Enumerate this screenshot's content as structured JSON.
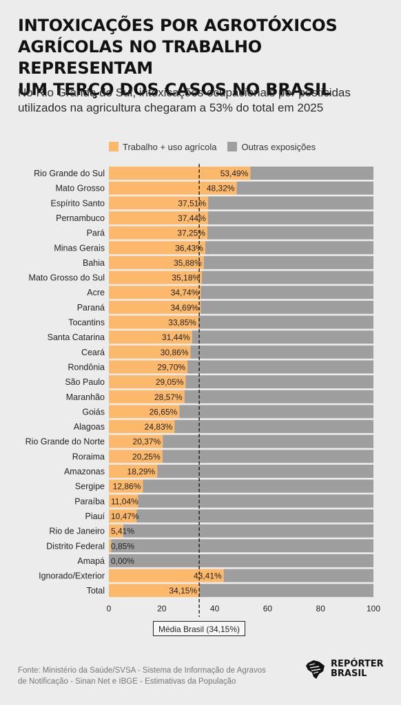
{
  "title": "INTOXICAÇÕES POR AGROTÓXICOS\nAGRÍCOLAS NO TRABALHO REPRESENTAM\nUM TERÇO DOS CASOS NO BRASIL",
  "subtitle": "No Rio Grande do Sul, intoxicações ocupacionais por pesticidas\nutilizados na agricultura chegaram a 53% do total em 2025",
  "legend": {
    "primary": "Trabalho + uso agrícola",
    "secondary": "Outras exposições"
  },
  "colors": {
    "primary": "#fdb96b",
    "secondary": "#9e9e9e",
    "background": "#ececec"
  },
  "average_label": "Média Brasil (34,15%)",
  "source": "Fonte: Ministério da Saúde/SVSA - Sistema de Informação de Agravos\nde Notificação - Sinan Net e IBGE - Estimativas da População",
  "logo": {
    "text": "REPÓRTER\nBRASIL",
    "icon": "brazil-map-icon"
  },
  "chart_data": {
    "type": "bar",
    "orientation": "horizontal",
    "stacked": true,
    "categories": [
      "Rio Grande do Sul",
      "Mato Grosso",
      "Espírito Santo",
      "Pernambuco",
      "Pará",
      "Minas Gerais",
      "Bahia",
      "Mato Grosso do Sul",
      "Acre",
      "Paraná",
      "Tocantins",
      "Santa Catarina",
      "Ceará",
      "Rondônia",
      "São Paulo",
      "Maranhão",
      "Goiás",
      "Alagoas",
      "Rio Grande do Norte",
      "Roraima",
      "Amazonas",
      "Sergipe",
      "Paraíba",
      "Piauí",
      "Rio de Janeiro",
      "Distrito Federal",
      "Amapá",
      "Ignorado/Exterior",
      "Total"
    ],
    "series": [
      {
        "name": "Trabalho + uso agrícola",
        "values": [
          53.49,
          48.32,
          37.51,
          37.44,
          37.25,
          36.43,
          35.88,
          35.18,
          34.74,
          34.69,
          33.85,
          31.44,
          30.86,
          29.7,
          29.05,
          28.57,
          26.65,
          24.83,
          20.37,
          20.25,
          18.29,
          12.86,
          11.04,
          10.47,
          5.41,
          0.85,
          0.0,
          43.41,
          34.15
        ]
      },
      {
        "name": "Outras exposições",
        "values": [
          46.51,
          51.68,
          62.49,
          62.56,
          62.75,
          63.57,
          64.12,
          64.82,
          65.26,
          65.31,
          66.15,
          68.56,
          69.14,
          70.3,
          70.95,
          71.43,
          73.35,
          75.17,
          79.63,
          79.75,
          81.71,
          87.14,
          88.96,
          89.53,
          94.59,
          99.15,
          100.0,
          56.59,
          65.85
        ]
      }
    ],
    "value_labels": [
      "53,49%",
      "48,32%",
      "37,51%",
      "37,44%",
      "37,25%",
      "36,43%",
      "35,88%",
      "35,18%",
      "34,74%",
      "34,69%",
      "33,85%",
      "31,44%",
      "30,86%",
      "29,70%",
      "29,05%",
      "28,57%",
      "26,65%",
      "24,83%",
      "20,37%",
      "20,25%",
      "18,29%",
      "12,86%",
      "11,04%",
      "10,47%",
      "5,41%",
      "0,85%",
      "0,00%",
      "43,41%",
      "34,15%"
    ],
    "xticks": [
      0,
      20,
      40,
      60,
      80,
      100
    ],
    "xlim": [
      0,
      100
    ],
    "reference_line": 34.15,
    "grid": false
  }
}
